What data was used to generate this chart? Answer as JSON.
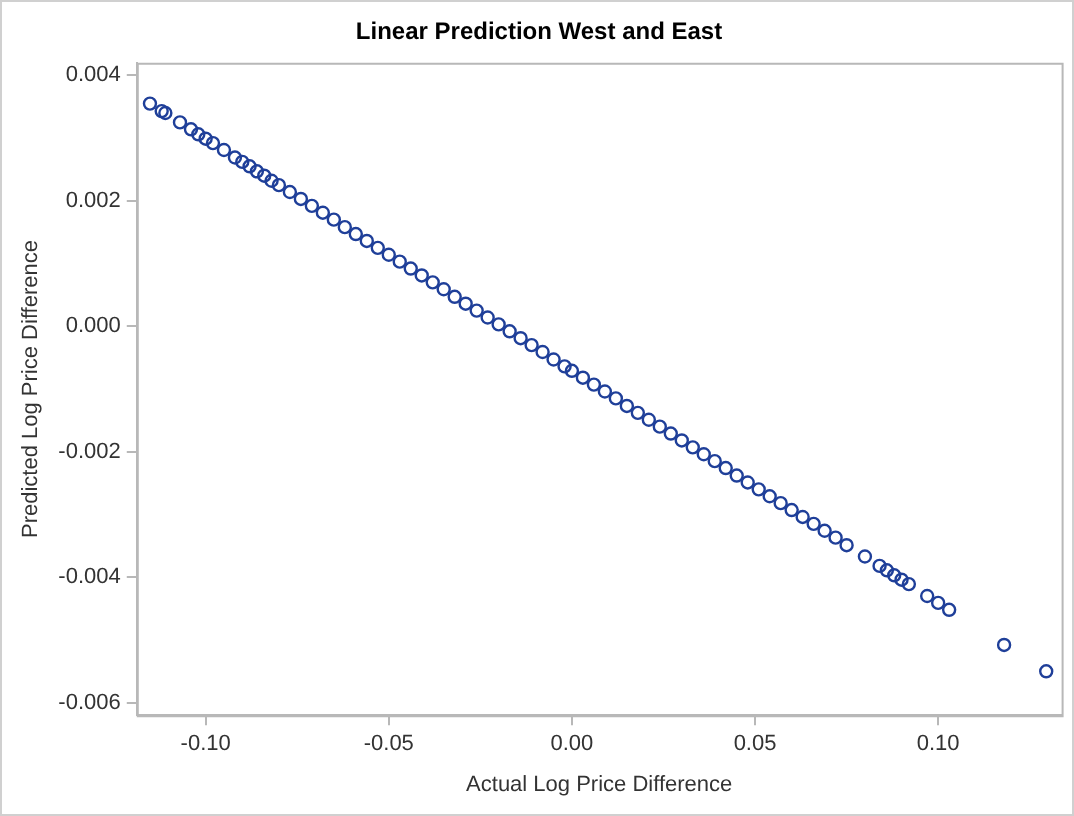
{
  "chart_data": {
    "type": "scatter",
    "title": "Linear Prediction West and East",
    "xlabel": "Actual Log Price Difference",
    "ylabel": "Predicted Log Price Difference",
    "marker": "circle",
    "grid": false,
    "legend": false,
    "xlim": [
      -0.1188,
      0.1337
    ],
    "ylim": [
      -0.0062,
      0.0042
    ],
    "xticks": [
      {
        "value": -0.1,
        "label": "-0.10"
      },
      {
        "value": -0.05,
        "label": "-0.05"
      },
      {
        "value": 0,
        "label": "0.00"
      },
      {
        "value": 0.05,
        "label": "0.05"
      },
      {
        "value": 0.1,
        "label": "0.10"
      }
    ],
    "yticks": [
      {
        "value": -0.006,
        "label": "-0.006"
      },
      {
        "value": -0.004,
        "label": "-0.004"
      },
      {
        "value": -0.002,
        "label": "-0.002"
      },
      {
        "value": 0,
        "label": "0.000"
      },
      {
        "value": 0.002,
        "label": "0.002"
      },
      {
        "value": 0.004,
        "label": "0.004"
      }
    ],
    "series": [
      {
        "color": "#1f3f99",
        "x": [
          -0.1152,
          -0.112,
          -0.111,
          -0.107,
          -0.104,
          -0.102,
          -0.1,
          -0.098,
          -0.095,
          -0.092,
          -0.09,
          -0.088,
          -0.086,
          -0.084,
          -0.082,
          -0.08,
          -0.077,
          -0.074,
          -0.071,
          -0.068,
          -0.065,
          -0.062,
          -0.059,
          -0.056,
          -0.053,
          -0.05,
          -0.047,
          -0.044,
          -0.041,
          -0.038,
          -0.035,
          -0.032,
          -0.029,
          -0.026,
          -0.023,
          -0.02,
          -0.017,
          -0.014,
          -0.011,
          -0.008,
          -0.005,
          -0.002,
          0,
          0.003,
          0.006,
          0.009,
          0.012,
          0.015,
          0.018,
          0.021,
          0.024,
          0.027,
          0.03,
          0.033,
          0.036,
          0.039,
          0.042,
          0.045,
          0.048,
          0.051,
          0.054,
          0.057,
          0.06,
          0.063,
          0.066,
          0.069,
          0.072,
          0.075,
          0.08,
          0.084,
          0.086,
          0.088,
          0.09,
          0.092,
          0.097,
          0.1,
          0.103,
          0.118,
          0.1295
        ],
        "values": [
          0.00355,
          0.00343,
          0.0034,
          0.00325,
          0.00314,
          0.00306,
          0.00299,
          0.00292,
          0.00281,
          0.00269,
          0.00262,
          0.00255,
          0.00247,
          0.0024,
          0.00232,
          0.00225,
          0.00214,
          0.00203,
          0.00192,
          0.00181,
          0.0017,
          0.00158,
          0.00147,
          0.00136,
          0.00125,
          0.00114,
          0.00103,
          0.00092,
          0.00081,
          0.0007,
          0.00059,
          0.00047,
          0.00036,
          0.00025,
          0.00014,
          3e-05,
          -8e-05,
          -0.00019,
          -0.0003,
          -0.00041,
          -0.00053,
          -0.00064,
          -0.00071,
          -0.00082,
          -0.00093,
          -0.00104,
          -0.00115,
          -0.00127,
          -0.00138,
          -0.00149,
          -0.0016,
          -0.00171,
          -0.00182,
          -0.00193,
          -0.00204,
          -0.00215,
          -0.00226,
          -0.00238,
          -0.00249,
          -0.0026,
          -0.00271,
          -0.00282,
          -0.00293,
          -0.00304,
          -0.00315,
          -0.00326,
          -0.00337,
          -0.00349,
          -0.00367,
          -0.00382,
          -0.00389,
          -0.00397,
          -0.00404,
          -0.00411,
          -0.0043,
          -0.00441,
          -0.00452,
          -0.00508,
          -0.0055
        ]
      }
    ]
  }
}
